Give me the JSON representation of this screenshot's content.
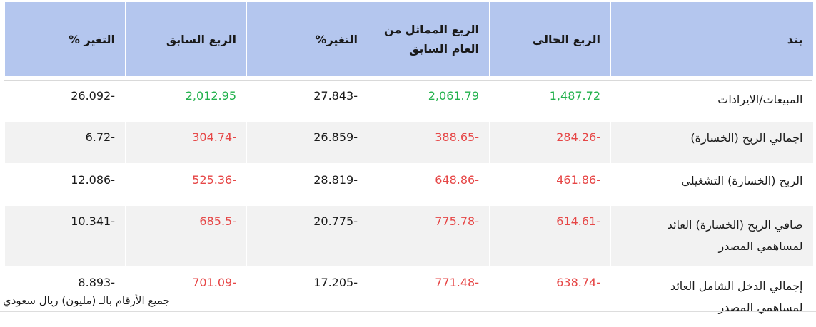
{
  "table": {
    "headers": {
      "item": "بند",
      "current_quarter": "الربع الحالي",
      "same_quarter_last_year": "الربع المماثل من العام السابق",
      "change_pct_1": "التغير%",
      "previous_quarter": "الربع السابق",
      "change_pct_2": "التغير %"
    },
    "rows": [
      {
        "item": "المبيعات/الايرادات",
        "current_quarter": "1,487.72",
        "same_quarter_last_year": "2,061.79",
        "change_pct_1": "27.843-",
        "previous_quarter": "2,012.95",
        "change_pct_2": "26.092-"
      },
      {
        "item": "اجمالي الربح (الخسارة)",
        "current_quarter": "284.26-",
        "same_quarter_last_year": "388.65-",
        "change_pct_1": "26.859-",
        "previous_quarter": "304.74-",
        "change_pct_2": "6.72-"
      },
      {
        "item": "الربح (الخسارة) التشغيلي",
        "current_quarter": "461.86-",
        "same_quarter_last_year": "648.86-",
        "change_pct_1": "28.819-",
        "previous_quarter": "525.36-",
        "change_pct_2": "12.086-"
      },
      {
        "item": "صافي الربح (الخسارة) العائد لمساهمي المصدر",
        "current_quarter": "614.61-",
        "same_quarter_last_year": "775.78-",
        "change_pct_1": "20.775-",
        "previous_quarter": "685.5-",
        "change_pct_2": "10.341-"
      },
      {
        "item": "إجمالي الدخل الشامل العائد لمساهمي المصدر",
        "current_quarter": "638.74-",
        "same_quarter_last_year": "771.48-",
        "change_pct_1": "17.205-",
        "previous_quarter": "701.09-",
        "change_pct_2": "8.893-"
      }
    ]
  },
  "footnote": "جميع الأرقام بالـ (مليون) ريال سعودي",
  "colors": {
    "header_bg": "#b4c6ee",
    "positive": "#22b14c",
    "negative": "#e64646",
    "stripe": "#f2f2f2"
  }
}
